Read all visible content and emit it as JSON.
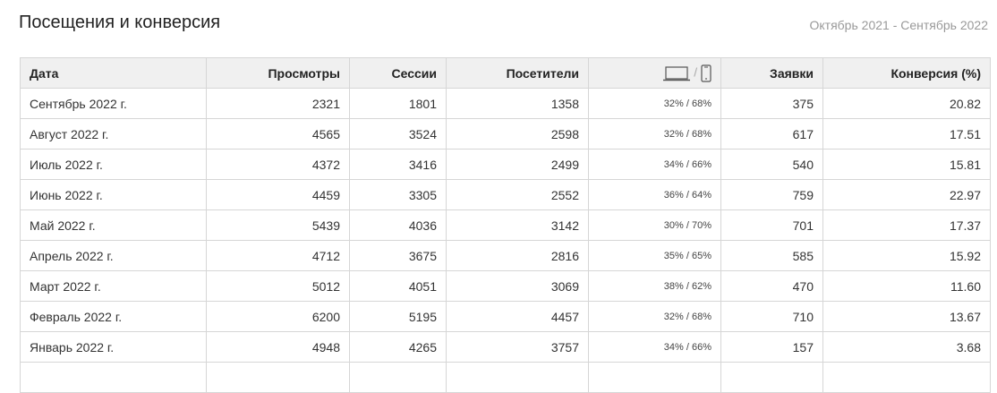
{
  "header": {
    "title": "Посещения и конверсия",
    "period": "Октябрь 2021 - Сентябрь 2022"
  },
  "table": {
    "columns": [
      "Дата",
      "Просмотры",
      "Сессии",
      "Посетители",
      "desktop / mobile",
      "Заявки",
      "Конверсия (%)"
    ],
    "device_icons": [
      "laptop-icon",
      "smartphone-icon"
    ],
    "device_sep": "/",
    "rows": [
      [
        "Сентябрь 2022 г.",
        "2321",
        "1801",
        "1358",
        "32% / 68%",
        "375",
        "20.82"
      ],
      [
        "Август 2022 г.",
        "4565",
        "3524",
        "2598",
        "32% / 68%",
        "617",
        "17.51"
      ],
      [
        "Июль 2022 г.",
        "4372",
        "3416",
        "2499",
        "34% / 66%",
        "540",
        "15.81"
      ],
      [
        "Июнь 2022 г.",
        "4459",
        "3305",
        "2552",
        "36% / 64%",
        "759",
        "22.97"
      ],
      [
        "Май 2022 г.",
        "5439",
        "4036",
        "3142",
        "30% / 70%",
        "701",
        "17.37"
      ],
      [
        "Апрель 2022 г.",
        "4712",
        "3675",
        "2816",
        "35% / 65%",
        "585",
        "15.92"
      ],
      [
        "Март 2022 г.",
        "5012",
        "4051",
        "3069",
        "38% / 62%",
        "470",
        "11.60"
      ],
      [
        "Февраль 2022 г.",
        "6200",
        "5195",
        "4457",
        "32% / 68%",
        "710",
        "13.67"
      ],
      [
        "Январь 2022 г.",
        "4948",
        "4265",
        "3757",
        "34% / 66%",
        "157",
        "3.68"
      ]
    ]
  }
}
